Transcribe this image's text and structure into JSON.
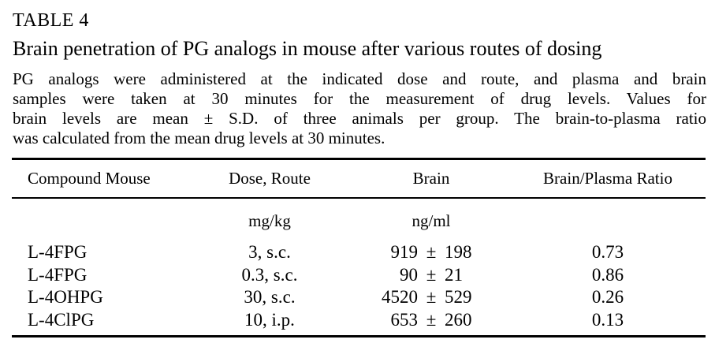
{
  "page": {
    "background_color": "#ffffff",
    "text_color": "#000000"
  },
  "table_label": "TABLE 4",
  "caption": "Brain penetration of PG analogs in mouse after various routes of dosing",
  "description_lines": [
    "PG analogs were administered at the indicated dose and route, and plasma and brain",
    "samples were taken at 30 minutes for the measurement of drug levels. Values for",
    "brain levels are mean ± S.D. of three animals per group. The brain-to-plasma ratio",
    "was calculated from the mean drug levels at 30 minutes."
  ],
  "table": {
    "columns": {
      "compound": "Compound Mouse",
      "dose_route": "Dose, Route",
      "brain": "Brain",
      "ratio": "Brain/Plasma Ratio"
    },
    "units": {
      "dose": "mg/kg",
      "brain": "ng/ml"
    },
    "pm_symbol": "±",
    "rows": [
      {
        "compound": "L-4FPG",
        "dose_route": "3, s.c.",
        "brain_mean": "919",
        "brain_sd": "198",
        "ratio": "0.73"
      },
      {
        "compound": "L-4FPG",
        "dose_route": "0.3, s.c.",
        "brain_mean": "90",
        "brain_sd": "21",
        "ratio": "0.86"
      },
      {
        "compound": "L-4OHPG",
        "dose_route": "30, s.c.",
        "brain_mean": "4520",
        "brain_sd": "529",
        "ratio": "0.26"
      },
      {
        "compound": "L-4ClPG",
        "dose_route": "10, i.p.",
        "brain_mean": "653",
        "brain_sd": "260",
        "ratio": "0.13"
      }
    ]
  }
}
